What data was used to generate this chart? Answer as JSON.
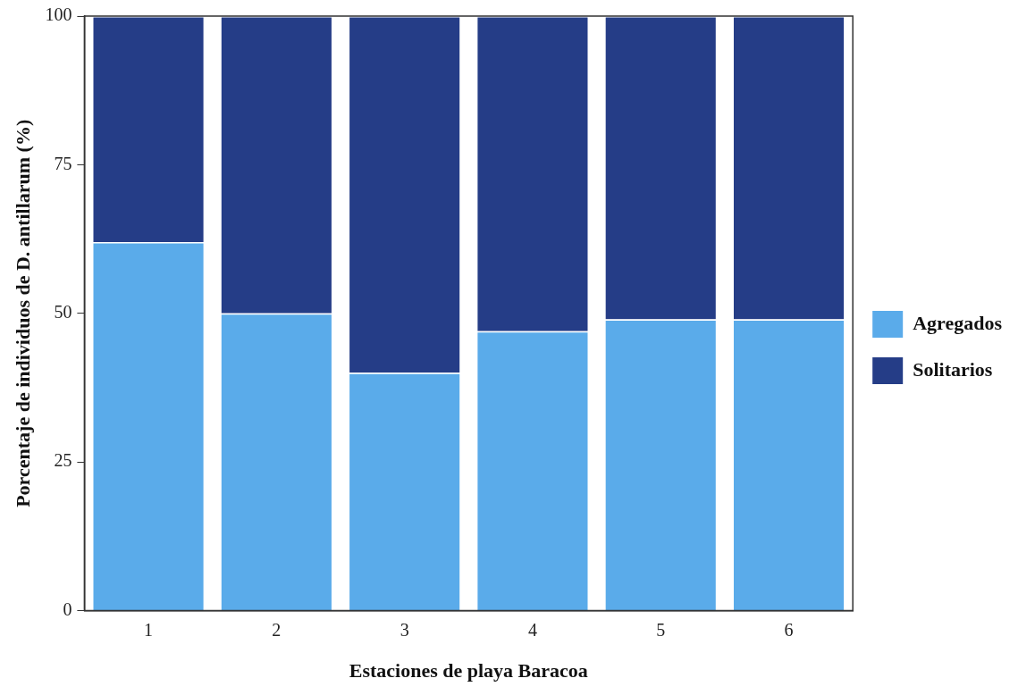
{
  "chart_data": {
    "type": "bar",
    "xlabel": "Estaciones de playa Baracoa",
    "ylabel": "Porcentaje de individuos de D. antillarum (%)",
    "categories": [
      "1",
      "2",
      "3",
      "4",
      "5",
      "6"
    ],
    "series": [
      {
        "name": "Agregados",
        "color": "#5aabea",
        "values": [
          62,
          50,
          40,
          47,
          49,
          49
        ]
      },
      {
        "name": "Solitarios",
        "color": "#253d87",
        "values": [
          38,
          50,
          60,
          53,
          51,
          51
        ]
      }
    ],
    "stacked": true,
    "ylim": [
      0,
      100
    ],
    "yticks": [
      0,
      25,
      50,
      75,
      100
    ],
    "grid": false,
    "legend": "right"
  }
}
